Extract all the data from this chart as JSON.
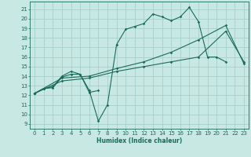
{
  "xlabel": "Humidex (Indice chaleur)",
  "xlim": [
    -0.5,
    23.5
  ],
  "ylim": [
    8.5,
    21.8
  ],
  "xticks": [
    0,
    1,
    2,
    3,
    4,
    5,
    6,
    7,
    8,
    9,
    10,
    11,
    12,
    13,
    14,
    15,
    16,
    17,
    18,
    19,
    20,
    21,
    22,
    23
  ],
  "yticks": [
    9,
    10,
    11,
    12,
    13,
    14,
    15,
    16,
    17,
    18,
    19,
    20,
    21
  ],
  "background_color": "#c8e8e4",
  "grid_color": "#a8d0cc",
  "line_color": "#1a6b5a",
  "series": [
    {
      "x": [
        0,
        1,
        2,
        3,
        4,
        5,
        6,
        7,
        8,
        9,
        10,
        11,
        12,
        13,
        14,
        15,
        16,
        17,
        18,
        19,
        20,
        21
      ],
      "y": [
        12.2,
        12.7,
        12.8,
        13.9,
        14.2,
        14.2,
        12.5,
        9.3,
        11.0,
        17.3,
        18.9,
        19.2,
        19.5,
        20.5,
        20.2,
        19.8,
        20.2,
        21.2,
        19.7,
        16.0,
        16.0,
        15.5
      ]
    },
    {
      "x": [
        0,
        1,
        2,
        3,
        4,
        5,
        6,
        7
      ],
      "y": [
        12.2,
        12.7,
        12.9,
        14.0,
        14.5,
        14.2,
        12.3,
        12.5
      ]
    },
    {
      "x": [
        0,
        3,
        6,
        9,
        12,
        15,
        18,
        21,
        23
      ],
      "y": [
        12.2,
        13.5,
        13.8,
        14.5,
        15.0,
        15.5,
        16.0,
        18.7,
        15.5
      ]
    },
    {
      "x": [
        0,
        3,
        6,
        9,
        12,
        15,
        18,
        21,
        23
      ],
      "y": [
        12.2,
        13.8,
        14.0,
        14.8,
        15.5,
        16.5,
        17.8,
        19.3,
        15.3
      ]
    }
  ]
}
